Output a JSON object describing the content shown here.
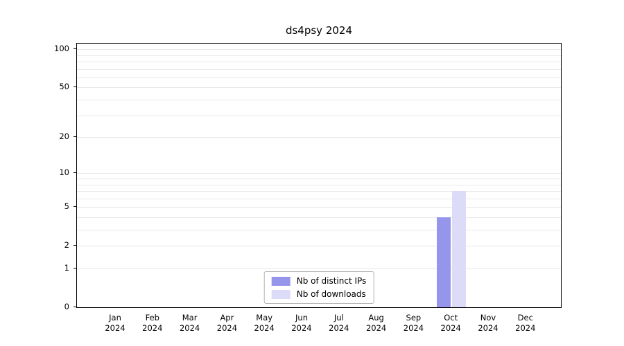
{
  "chart_data": {
    "type": "bar",
    "title": "ds4psy 2024",
    "categories": [
      "Jan 2024",
      "Feb 2024",
      "Mar 2024",
      "Apr 2024",
      "May 2024",
      "Jun 2024",
      "Jul 2024",
      "Aug 2024",
      "Sep 2024",
      "Oct 2024",
      "Nov 2024",
      "Dec 2024"
    ],
    "series": [
      {
        "name": "Nb of distinct IPs",
        "color": "#9595ec",
        "values": [
          0,
          0,
          0,
          0,
          0,
          0,
          0,
          0,
          0,
          4,
          0,
          0
        ]
      },
      {
        "name": "Nb of downloads",
        "color": "#dcdcf8",
        "values": [
          0,
          0,
          0,
          0,
          0,
          0,
          0,
          0,
          0,
          7,
          0,
          0
        ]
      }
    ],
    "yticks": [
      0,
      1,
      2,
      5,
      10,
      20,
      50,
      100
    ],
    "minor_gridlines": [
      1,
      2,
      3,
      4,
      5,
      6,
      7,
      8,
      9,
      10,
      20,
      30,
      40,
      50,
      60,
      70,
      80,
      90,
      100
    ],
    "y_scale": "log10(1+x)",
    "ylim": [
      0,
      110
    ],
    "grid": true,
    "grid_color": "#e8e8e8",
    "axis_color": "#000000",
    "legend_position": "bottom-center-inside"
  }
}
